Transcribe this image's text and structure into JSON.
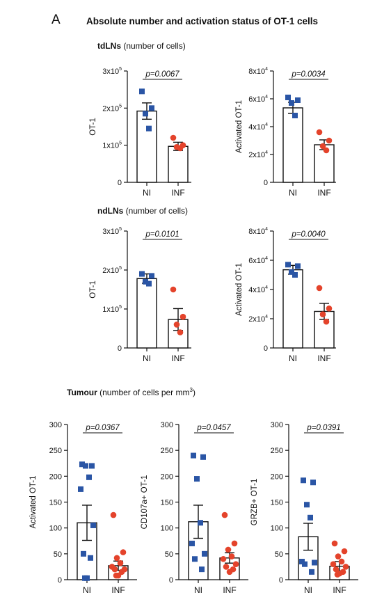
{
  "figure": {
    "panel_letter": "A",
    "title": "Absolute number and activation status of OT-1 cells",
    "sections": [
      {
        "bold": "tdLNs",
        "rest": " (number of cells)",
        "sup": ""
      },
      {
        "bold": "ndLNs",
        "rest": " (number of cells)",
        "sup": ""
      },
      {
        "bold": "Tumour",
        "rest": " (number of cells per mm",
        "sup": "3",
        "after": ")"
      }
    ]
  },
  "colors": {
    "NI": "#2a55a5",
    "INF": "#e4432b",
    "axis": "#111111"
  },
  "chart_data": [
    {
      "type": "bar",
      "section": "tdLNs",
      "categories": [
        "NI",
        "INF"
      ],
      "ylabel": "OT-1",
      "ylim": [
        0,
        300000
      ],
      "ytick_values": [
        0,
        100000,
        200000,
        300000
      ],
      "ytick_labels": [
        {
          "m": "0",
          "e": ""
        },
        {
          "m": "1x10",
          "e": "5"
        },
        {
          "m": "2x10",
          "e": "5"
        },
        {
          "m": "3x10",
          "e": "5"
        }
      ],
      "pvalue": "p=0.0067",
      "means": [
        192000,
        97000
      ],
      "sem": [
        22000,
        11000
      ],
      "points": [
        [
          245000,
          200000,
          185000,
          145000
        ],
        [
          120000,
          100000,
          95000,
          92000
        ]
      ]
    },
    {
      "type": "bar",
      "section": "tdLNs",
      "categories": [
        "NI",
        "INF"
      ],
      "ylabel": "Activated OT-1",
      "ylim": [
        0,
        80000
      ],
      "ytick_values": [
        0,
        20000,
        40000,
        60000,
        80000
      ],
      "ytick_labels": [
        {
          "m": "0",
          "e": ""
        },
        {
          "m": "2x10",
          "e": "4"
        },
        {
          "m": "4x10",
          "e": "4"
        },
        {
          "m": "6x10",
          "e": "4"
        },
        {
          "m": "8x10",
          "e": "4"
        }
      ],
      "pvalue": "p=0.0034",
      "means": [
        53500,
        27000
      ],
      "sem": [
        4000,
        3500
      ],
      "points": [
        [
          61000,
          59000,
          57000,
          48000
        ],
        [
          36000,
          30000,
          26000,
          23000
        ]
      ]
    },
    {
      "type": "bar",
      "section": "ndLNs",
      "categories": [
        "NI",
        "INF"
      ],
      "ylabel": "OT-1",
      "ylim": [
        0,
        300000
      ],
      "ytick_values": [
        0,
        100000,
        200000,
        300000
      ],
      "ytick_labels": [
        {
          "m": "0",
          "e": ""
        },
        {
          "m": "1x10",
          "e": "5"
        },
        {
          "m": "2x10",
          "e": "5"
        },
        {
          "m": "3x10",
          "e": "5"
        }
      ],
      "pvalue": "p=0.0101",
      "means": [
        178000,
        73000
      ],
      "sem": [
        12000,
        28000
      ],
      "points": [
        [
          190000,
          185000,
          170000,
          165000
        ],
        [
          150000,
          80000,
          60000,
          40000
        ]
      ]
    },
    {
      "type": "bar",
      "section": "ndLNs",
      "categories": [
        "NI",
        "INF"
      ],
      "ylabel": "Activated OT-1",
      "ylim": [
        0,
        80000
      ],
      "ytick_values": [
        0,
        20000,
        40000,
        60000,
        80000
      ],
      "ytick_labels": [
        {
          "m": "0",
          "e": ""
        },
        {
          "m": "2x10",
          "e": "4"
        },
        {
          "m": "4x10",
          "e": "4"
        },
        {
          "m": "6x10",
          "e": "4"
        },
        {
          "m": "8x10",
          "e": "4"
        }
      ],
      "pvalue": "p=0.0040",
      "means": [
        53500,
        25000
      ],
      "sem": [
        3000,
        5500
      ],
      "points": [
        [
          57000,
          56000,
          52000,
          50000
        ],
        [
          41000,
          27000,
          23000,
          18000
        ]
      ]
    },
    {
      "type": "bar",
      "section": "Tumour",
      "categories": [
        "NI",
        "INF"
      ],
      "ylabel": "Activated OT-1",
      "ylim": [
        0,
        300
      ],
      "ytick_values": [
        0,
        50,
        100,
        150,
        200,
        250,
        300
      ],
      "ytick_labels": [
        {
          "m": "0",
          "e": ""
        },
        {
          "m": "50",
          "e": ""
        },
        {
          "m": "100",
          "e": ""
        },
        {
          "m": "150",
          "e": ""
        },
        {
          "m": "200",
          "e": ""
        },
        {
          "m": "250",
          "e": ""
        },
        {
          "m": "300",
          "e": ""
        }
      ],
      "pvalue": "p=0.0367",
      "means": [
        110,
        27
      ],
      "sem": [
        34,
        9
      ],
      "points": [
        [
          223,
          220,
          220,
          198,
          175,
          105,
          50,
          42,
          3,
          3
        ],
        [
          125,
          53,
          42,
          32,
          25,
          20,
          20,
          15,
          8,
          8
        ]
      ]
    },
    {
      "type": "bar",
      "section": "Tumour",
      "categories": [
        "NI",
        "INF"
      ],
      "ylabel": "CD107a+ OT-1",
      "ylim": [
        0,
        300
      ],
      "ytick_values": [
        0,
        50,
        100,
        150,
        200,
        250,
        300
      ],
      "ytick_labels": [
        {
          "m": "0",
          "e": ""
        },
        {
          "m": "50",
          "e": ""
        },
        {
          "m": "100",
          "e": ""
        },
        {
          "m": "150",
          "e": ""
        },
        {
          "m": "200",
          "e": ""
        },
        {
          "m": "250",
          "e": ""
        },
        {
          "m": "300",
          "e": ""
        }
      ],
      "pvalue": "p=0.0457",
      "means": [
        112,
        42
      ],
      "sem": [
        32,
        10
      ],
      "points": [
        [
          240,
          237,
          195,
          110,
          70,
          50,
          40,
          20
        ],
        [
          125,
          70,
          58,
          45,
          40,
          30,
          25,
          20,
          15
        ]
      ]
    },
    {
      "type": "bar",
      "section": "Tumour",
      "categories": [
        "NI",
        "INF"
      ],
      "ylabel": "GRZB+ OT-1",
      "ylim": [
        0,
        300
      ],
      "ytick_values": [
        0,
        50,
        100,
        150,
        200,
        250,
        300
      ],
      "ytick_labels": [
        {
          "m": "0",
          "e": ""
        },
        {
          "m": "50",
          "e": ""
        },
        {
          "m": "100",
          "e": ""
        },
        {
          "m": "150",
          "e": ""
        },
        {
          "m": "200",
          "e": ""
        },
        {
          "m": "250",
          "e": ""
        },
        {
          "m": "300",
          "e": ""
        }
      ],
      "pvalue": "p=0.0391",
      "means": [
        83,
        26
      ],
      "sem": [
        26,
        9
      ],
      "points": [
        [
          192,
          188,
          145,
          120,
          35,
          33,
          30,
          15
        ],
        [
          70,
          55,
          45,
          35,
          30,
          25,
          20,
          15,
          12,
          10
        ]
      ]
    }
  ]
}
